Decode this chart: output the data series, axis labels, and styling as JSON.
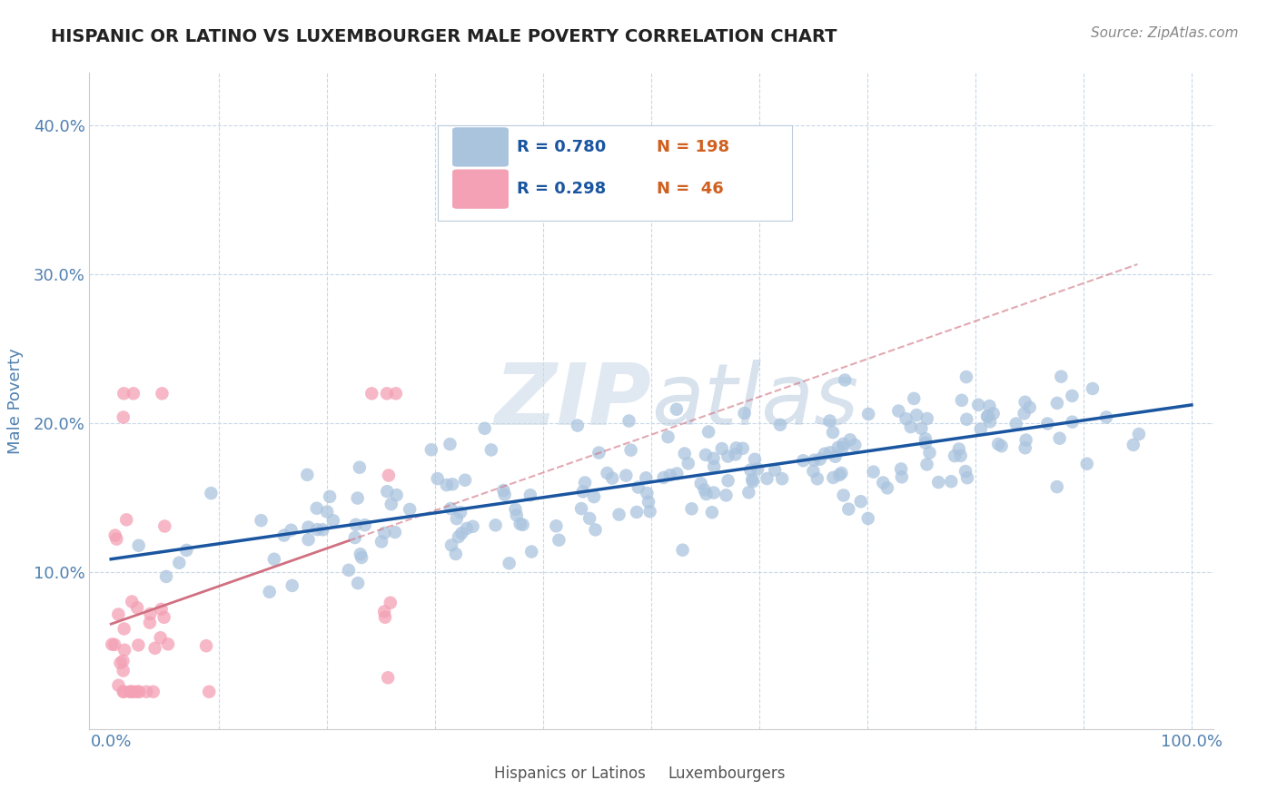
{
  "title": "HISPANIC OR LATINO VS LUXEMBOURGER MALE POVERTY CORRELATION CHART",
  "source_text": "Source: ZipAtlas.com",
  "ylabel": "Male Poverty",
  "xlim": [
    -0.02,
    1.02
  ],
  "ylim": [
    -0.005,
    0.435
  ],
  "yticks": [
    0.0,
    0.1,
    0.2,
    0.3,
    0.4
  ],
  "ytick_labels": [
    "",
    "10.0%",
    "20.0%",
    "30.0%",
    "40.0%"
  ],
  "xticks": [
    0.0,
    0.1,
    0.2,
    0.3,
    0.4,
    0.5,
    0.6,
    0.7,
    0.8,
    0.9,
    1.0
  ],
  "xtick_labels": [
    "0.0%",
    "",
    "",
    "",
    "",
    "",
    "",
    "",
    "",
    "",
    "100.0%"
  ],
  "blue_R": 0.78,
  "blue_N": 198,
  "pink_R": 0.298,
  "pink_N": 46,
  "blue_color": "#aac4de",
  "pink_color": "#f4a0b5",
  "blue_line_color": "#1a55a0",
  "pink_line_color": "#d07080",
  "legend_label_blue": "Hispanics or Latinos",
  "legend_label_pink": "Luxembourgers",
  "watermark": "ZIPatlas",
  "background_color": "#ffffff",
  "grid_color": "#c8d8e8",
  "title_fontsize": 14,
  "axis_label_color": "#5080b0",
  "tick_label_color": "#5080b0",
  "source_color": "#888888",
  "blue_seed": 12,
  "pink_seed": 5
}
